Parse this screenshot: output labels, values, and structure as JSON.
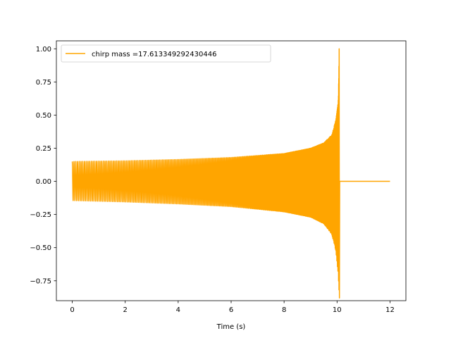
{
  "chart_data": {
    "type": "line",
    "title": "",
    "xlabel": "Time (s)",
    "ylabel": "",
    "xlim": [
      -0.6,
      12.6
    ],
    "ylim": [
      -0.9,
      1.06
    ],
    "xticks": [
      0,
      2,
      4,
      6,
      8,
      10,
      12
    ],
    "yticks": [
      -0.75,
      -0.5,
      -0.25,
      0.0,
      0.25,
      0.5,
      0.75,
      1.0
    ],
    "xtick_labels": [
      "0",
      "2",
      "4",
      "6",
      "8",
      "10",
      "12"
    ],
    "ytick_labels": [
      "−0.75",
      "−0.50",
      "−0.25",
      "0.00",
      "0.25",
      "0.50",
      "0.75",
      "1.00"
    ],
    "grid": false,
    "legend_position": "top-left",
    "series": [
      {
        "name": "chirp mass =17.613349292430446",
        "color": "#ffa500",
        "signal": "chirp",
        "start_time": 0.0,
        "merger_time": 10.08,
        "end_time": 12.0,
        "envelope_upper": [
          [
            0.0,
            0.15
          ],
          [
            2.0,
            0.155
          ],
          [
            4.0,
            0.165
          ],
          [
            6.0,
            0.18
          ],
          [
            8.0,
            0.21
          ],
          [
            9.0,
            0.25
          ],
          [
            9.5,
            0.29
          ],
          [
            9.8,
            0.35
          ],
          [
            9.95,
            0.46
          ],
          [
            10.05,
            0.62
          ],
          [
            10.08,
            1.0
          ]
        ],
        "envelope_lower": [
          [
            0.0,
            -0.145
          ],
          [
            2.0,
            -0.155
          ],
          [
            4.0,
            -0.17
          ],
          [
            6.0,
            -0.19
          ],
          [
            8.0,
            -0.23
          ],
          [
            9.0,
            -0.27
          ],
          [
            9.5,
            -0.32
          ],
          [
            9.8,
            -0.4
          ],
          [
            9.95,
            -0.52
          ],
          [
            10.05,
            -0.72
          ],
          [
            10.08,
            -0.88
          ]
        ],
        "post_merger_value": 0.0
      }
    ]
  }
}
